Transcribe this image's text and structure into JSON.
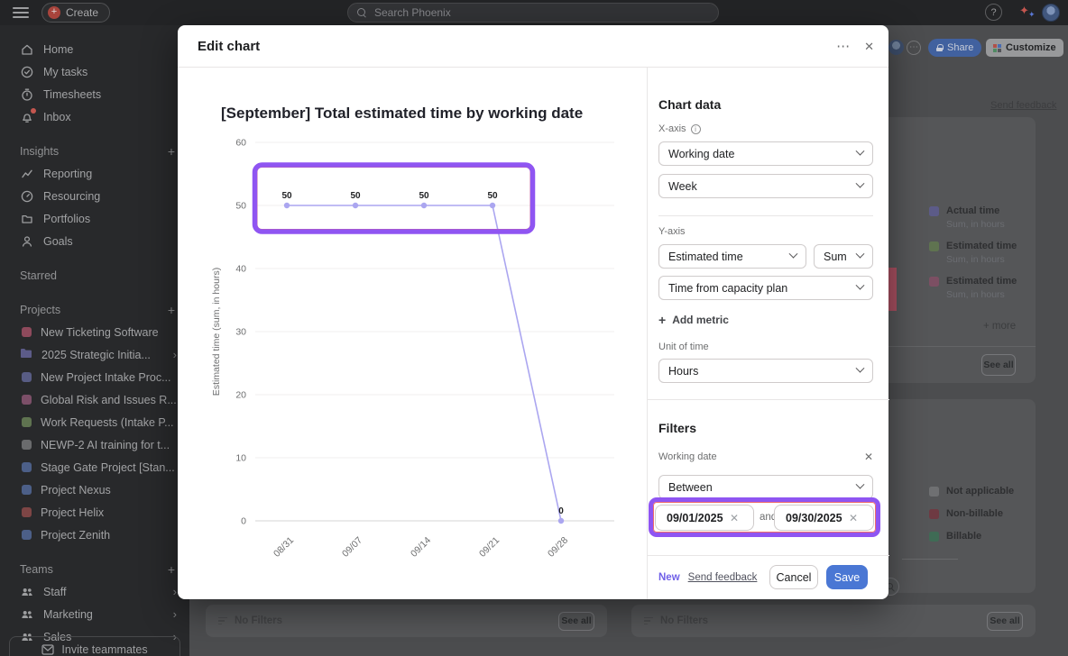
{
  "topbar": {
    "create_label": "Create",
    "search_placeholder": "Search Phoenix",
    "help_icon": "?"
  },
  "sidebar": {
    "nav": [
      {
        "label": "Home",
        "icon": "home"
      },
      {
        "label": "My tasks",
        "icon": "check-circle"
      },
      {
        "label": "Timesheets",
        "icon": "stopwatch"
      },
      {
        "label": "Inbox",
        "icon": "bell",
        "badge": true
      }
    ],
    "insights": {
      "header": "Insights",
      "items": [
        {
          "label": "Reporting",
          "icon": "chart-line"
        },
        {
          "label": "Resourcing",
          "icon": "gauge"
        },
        {
          "label": "Portfolios",
          "icon": "folder"
        },
        {
          "label": "Goals",
          "icon": "person"
        }
      ]
    },
    "starred_header": "Starred",
    "projects": {
      "header": "Projects",
      "items": [
        {
          "label": "New Ticketing Software",
          "color": "#8e4a5c",
          "kind": "dot"
        },
        {
          "label": "2025 Strategic Initia...",
          "color": "#5c5b88",
          "kind": "folder",
          "chevron": true
        },
        {
          "label": "New Project Intake Proc...",
          "color": "#585c84",
          "kind": "dot"
        },
        {
          "label": "Global Risk and Issues R...",
          "color": "#7c4f68",
          "kind": "dot"
        },
        {
          "label": "Work Requests (Intake P...",
          "color": "#5f7350",
          "kind": "dot"
        },
        {
          "label": "NEWP-2 AI training for t...",
          "color": "#6a6b6d",
          "kind": "dot"
        },
        {
          "label": "Stage Gate Project [Stan...",
          "color": "#4c5f88",
          "kind": "dot"
        },
        {
          "label": "Project Nexus",
          "color": "#4c5f88",
          "kind": "dot"
        },
        {
          "label": "Project Helix",
          "color": "#7d4545",
          "kind": "dot"
        },
        {
          "label": "Project Zenith",
          "color": "#4c5f88",
          "kind": "dot"
        }
      ]
    },
    "teams": {
      "header": "Teams",
      "items": [
        "Staff",
        "Marketing",
        "Sales"
      ]
    },
    "invite_label": "Invite teammates"
  },
  "modal": {
    "title": "Edit chart",
    "icons": {
      "overflow": "⋯",
      "close": "✕",
      "clear": "✕",
      "info": "i",
      "plus": "+"
    },
    "panel": {
      "chart_data_heading": "Chart data",
      "x_axis_label": "X-axis",
      "x_axis_value": "Working date",
      "x_axis_granularity": "Week",
      "y_axis_label": "Y-axis",
      "y_metric": "Estimated time",
      "y_aggregation": "Sum",
      "y_source": "Time from capacity plan",
      "add_metric_label": "Add metric",
      "unit_label": "Unit of time",
      "unit_value": "Hours",
      "filters_heading": "Filters",
      "filter_name": "Working date",
      "filter_operator": "Between",
      "date_from": "09/01/2025",
      "and_label": "and",
      "date_to": "09/30/2025"
    },
    "footer": {
      "new_label": "New",
      "feedback_label": "Send feedback",
      "cancel_label": "Cancel",
      "save_label": "Save"
    }
  },
  "chart_data": {
    "type": "line",
    "title": "[September] Total estimated time by working date",
    "x": [
      "08/31",
      "09/07",
      "09/14",
      "09/21",
      "09/28"
    ],
    "values": [
      50,
      50,
      50,
      50,
      0
    ],
    "point_labels": [
      "50",
      "50",
      "50",
      "50",
      "0"
    ],
    "ylabel": "Estimated time (sum, in hours)",
    "ylim": [
      0,
      60
    ],
    "yticks": [
      0,
      10,
      20,
      30,
      40,
      50,
      60
    ],
    "grid": true,
    "legend_position": "none",
    "line_color": "#aba6f0"
  },
  "annotations": {
    "highlight_color": "#8f55f2",
    "inner_stroke": "#ef6c6c"
  },
  "background": {
    "share_label": "Share",
    "customize_label": "Customize",
    "send_feedback_label": "Send feedback",
    "legend_time": [
      {
        "color": "#5c5b88",
        "label": "Actual time",
        "sub": "Sum, in hours"
      },
      {
        "color": "#5f7350",
        "label": "Estimated time",
        "sub": "Sum, in hours"
      },
      {
        "color": "#7c4f63",
        "label": "Estimated time",
        "sub": "Sum, in hours"
      }
    ],
    "more_label": "+ more",
    "see_all_label": "See all",
    "legend_billing": [
      {
        "color": "#6f7072",
        "label": "Not applicable"
      },
      {
        "color": "#6e3a42",
        "label": "Non-billable"
      },
      {
        "color": "#3f6b55",
        "label": "Billable"
      }
    ],
    "no_filters_label": "No Filters",
    "accent_bar_color": "#a84f60"
  }
}
